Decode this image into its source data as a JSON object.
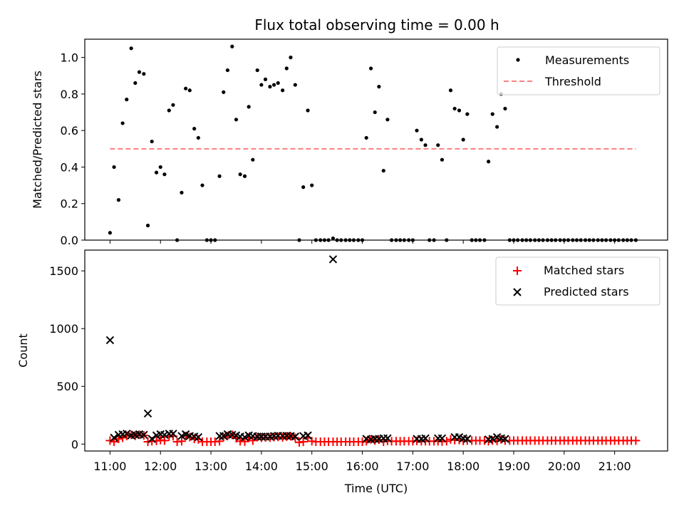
{
  "chart_data": [
    {
      "type": "scatter",
      "title": "Flux total observing time = 0.00 h",
      "xlabel": "",
      "ylabel": "Matched/Predicted stars",
      "xlim": [
        10.5,
        22.05
      ],
      "ylim": [
        0,
        1.1
      ],
      "yticks": [
        0.0,
        0.2,
        0.4,
        0.6,
        0.8,
        1.0
      ],
      "ytick_labels": [
        "0.0",
        "0.2",
        "0.4",
        "0.6",
        "0.8",
        "1.0"
      ],
      "legend_position": "upper right",
      "series": [
        {
          "name": "Measurements",
          "style": "dot",
          "color": "#000000",
          "x": [
            11.0,
            11.08,
            11.17,
            11.25,
            11.33,
            11.42,
            11.5,
            11.58,
            11.67,
            11.75,
            11.83,
            11.92,
            12.0,
            12.08,
            12.17,
            12.25,
            12.33,
            12.42,
            12.5,
            12.58,
            12.67,
            12.75,
            12.83,
            12.92,
            13.0,
            13.08,
            13.17,
            13.25,
            13.33,
            13.42,
            13.5,
            13.58,
            13.67,
            13.75,
            13.83,
            13.92,
            14.0,
            14.08,
            14.17,
            14.25,
            14.33,
            14.42,
            14.5,
            14.58,
            14.67,
            14.75,
            14.83,
            14.92,
            15.0,
            15.08,
            15.17,
            15.25,
            15.33,
            15.42,
            15.5,
            15.58,
            15.67,
            15.75,
            15.83,
            15.92,
            16.0,
            16.08,
            16.17,
            16.25,
            16.33,
            16.42,
            16.5,
            16.58,
            16.67,
            16.75,
            16.83,
            16.92,
            17.0,
            17.08,
            17.17,
            17.25,
            17.33,
            17.42,
            17.5,
            17.58,
            17.67,
            17.75,
            17.83,
            17.92,
            18.0,
            18.08,
            18.17,
            18.25,
            18.33,
            18.42,
            18.5,
            18.58,
            18.67,
            18.75,
            18.83,
            18.92,
            19.0,
            19.08,
            19.17,
            19.25,
            19.33,
            19.42,
            19.5,
            19.58,
            19.67,
            19.75,
            19.83,
            19.92,
            20.0,
            20.08,
            20.17,
            20.25,
            20.33,
            20.42,
            20.5,
            20.58,
            20.67,
            20.75,
            20.83,
            20.92,
            21.0,
            21.08,
            21.17,
            21.25,
            21.33,
            21.42
          ],
          "y": [
            0.04,
            0.4,
            0.22,
            0.64,
            0.77,
            1.05,
            0.86,
            0.92,
            0.91,
            0.08,
            0.54,
            0.37,
            0.4,
            0.36,
            0.71,
            0.74,
            0.0,
            0.26,
            0.83,
            0.82,
            0.61,
            0.56,
            0.3,
            0.0,
            0.0,
            0.0,
            0.35,
            0.81,
            0.93,
            1.06,
            0.66,
            0.36,
            0.35,
            0.73,
            0.44,
            0.93,
            0.85,
            0.88,
            0.84,
            0.85,
            0.86,
            0.82,
            0.94,
            1.0,
            0.85,
            0.0,
            0.29,
            0.71,
            0.3,
            0.0,
            0.0,
            0.0,
            0.0,
            0.01,
            0.0,
            0.0,
            0.0,
            0.0,
            0.0,
            0.0,
            0.0,
            0.56,
            0.94,
            0.7,
            0.84,
            0.38,
            0.66,
            0.0,
            0.0,
            0.0,
            0.0,
            0.0,
            0.0,
            0.6,
            0.55,
            0.52,
            0.0,
            0.0,
            0.52,
            0.44,
            0.0,
            0.82,
            0.72,
            0.71,
            0.55,
            0.69,
            0.0,
            0.0,
            0.0,
            0.0,
            0.43,
            0.69,
            0.62,
            0.8,
            0.72,
            0.0,
            0.0,
            0.0,
            0.0,
            0.0,
            0.0,
            0.0,
            0.0,
            0.0,
            0.0,
            0.0,
            0.0,
            0.0,
            0.0,
            0.0,
            0.0,
            0.0,
            0.0,
            0.0,
            0.0,
            0.0,
            0.0,
            0.0,
            0.0,
            0.0,
            0.0,
            0.0,
            0.0,
            0.0,
            0.0,
            0.0
          ]
        },
        {
          "name": "Threshold",
          "style": "dashed-line",
          "color": "#ff7f7f",
          "x": [
            11.0,
            21.42
          ],
          "y": [
            0.5,
            0.5
          ]
        }
      ]
    },
    {
      "type": "scatter",
      "title": "",
      "xlabel": "Time (UTC)",
      "ylabel": "Count",
      "xlim": [
        10.5,
        22.05
      ],
      "ylim": [
        -60,
        1680
      ],
      "xticks": [
        11,
        12,
        13,
        14,
        15,
        16,
        17,
        18,
        19,
        20,
        21
      ],
      "xtick_labels": [
        "11:00",
        "12:00",
        "13:00",
        "14:00",
        "15:00",
        "16:00",
        "17:00",
        "18:00",
        "19:00",
        "20:00",
        "21:00"
      ],
      "yticks": [
        0,
        500,
        1000,
        1500
      ],
      "ytick_labels": [
        "0",
        "500",
        "1000",
        "1500"
      ],
      "legend_position": "upper right",
      "series": [
        {
          "name": "Matched stars",
          "marker": "plus",
          "color": "#ff0000",
          "x": [
            11.0,
            11.08,
            11.17,
            11.25,
            11.33,
            11.42,
            11.5,
            11.58,
            11.67,
            11.75,
            11.83,
            11.92,
            12.0,
            12.08,
            12.17,
            12.25,
            12.33,
            12.42,
            12.5,
            12.58,
            12.67,
            12.75,
            12.83,
            12.92,
            13.0,
            13.08,
            13.17,
            13.25,
            13.33,
            13.42,
            13.5,
            13.58,
            13.67,
            13.75,
            13.83,
            13.92,
            14.0,
            14.08,
            14.17,
            14.25,
            14.33,
            14.42,
            14.5,
            14.58,
            14.67,
            14.75,
            14.83,
            14.92,
            15.0,
            15.08,
            15.17,
            15.25,
            15.33,
            15.42,
            15.5,
            15.58,
            15.67,
            15.75,
            15.83,
            15.92,
            16.0,
            16.08,
            16.17,
            16.25,
            16.33,
            16.42,
            16.5,
            16.58,
            16.67,
            16.75,
            16.83,
            16.92,
            17.0,
            17.08,
            17.17,
            17.25,
            17.33,
            17.42,
            17.5,
            17.58,
            17.67,
            17.75,
            17.83,
            17.92,
            18.0,
            18.08,
            18.17,
            18.25,
            18.33,
            18.42,
            18.5,
            18.58,
            18.67,
            18.75,
            18.83,
            18.92,
            19.0,
            19.08,
            19.17,
            19.25,
            19.33,
            19.42,
            19.5,
            19.58,
            19.67,
            19.75,
            19.83,
            19.92,
            20.0,
            20.08,
            20.17,
            20.25,
            20.33,
            20.42,
            20.5,
            20.58,
            20.67,
            20.75,
            20.83,
            20.92,
            21.0,
            21.08,
            21.17,
            21.25,
            21.33,
            21.42
          ],
          "y": [
            30,
            20,
            45,
            55,
            70,
            80,
            72,
            80,
            75,
            20,
            25,
            28,
            35,
            30,
            65,
            68,
            20,
            25,
            70,
            60,
            45,
            40,
            20,
            20,
            20,
            20,
            25,
            60,
            70,
            80,
            50,
            25,
            22,
            55,
            30,
            60,
            55,
            58,
            55,
            60,
            62,
            58,
            65,
            68,
            55,
            15,
            20,
            55,
            25,
            20,
            20,
            20,
            20,
            20,
            20,
            20,
            20,
            20,
            20,
            20,
            20,
            25,
            40,
            30,
            38,
            20,
            28,
            25,
            25,
            25,
            25,
            25,
            25,
            28,
            25,
            25,
            25,
            25,
            25,
            22,
            25,
            40,
            35,
            35,
            28,
            30,
            30,
            30,
            30,
            30,
            25,
            30,
            28,
            40,
            30,
            30,
            30,
            30,
            30,
            30,
            30,
            30,
            30,
            30,
            30,
            30,
            30,
            30,
            30,
            30,
            30,
            30,
            30,
            30,
            30,
            30,
            30,
            30,
            30,
            30,
            30,
            30,
            30,
            30,
            30,
            30
          ]
        },
        {
          "name": "Predicted stars",
          "marker": "x",
          "color": "#000000",
          "x": [
            11.0,
            11.08,
            11.17,
            11.25,
            11.33,
            11.42,
            11.5,
            11.58,
            11.67,
            11.75,
            11.83,
            11.92,
            12.0,
            12.08,
            12.17,
            12.25,
            12.42,
            12.5,
            12.58,
            12.67,
            12.75,
            13.17,
            13.25,
            13.33,
            13.42,
            13.5,
            13.58,
            13.67,
            13.75,
            13.83,
            13.92,
            14.0,
            14.08,
            14.17,
            14.25,
            14.33,
            14.42,
            14.5,
            14.58,
            14.67,
            14.83,
            14.92,
            15.42,
            16.08,
            16.17,
            16.25,
            16.33,
            16.42,
            16.5,
            17.08,
            17.17,
            17.25,
            17.5,
            17.58,
            17.83,
            17.92,
            18.0,
            18.08,
            18.5,
            18.58,
            18.67,
            18.75,
            18.83
          ],
          "y": [
            900,
            55,
            80,
            85,
            90,
            75,
            80,
            85,
            80,
            265,
            45,
            75,
            85,
            80,
            90,
            90,
            70,
            85,
            70,
            65,
            60,
            70,
            70,
            85,
            80,
            75,
            65,
            60,
            75,
            70,
            65,
            65,
            65,
            65,
            70,
            72,
            70,
            72,
            70,
            65,
            70,
            75,
            1600,
            45,
            40,
            45,
            45,
            50,
            50,
            45,
            45,
            50,
            50,
            50,
            60,
            60,
            50,
            45,
            40,
            45,
            60,
            50,
            45
          ]
        }
      ]
    }
  ]
}
